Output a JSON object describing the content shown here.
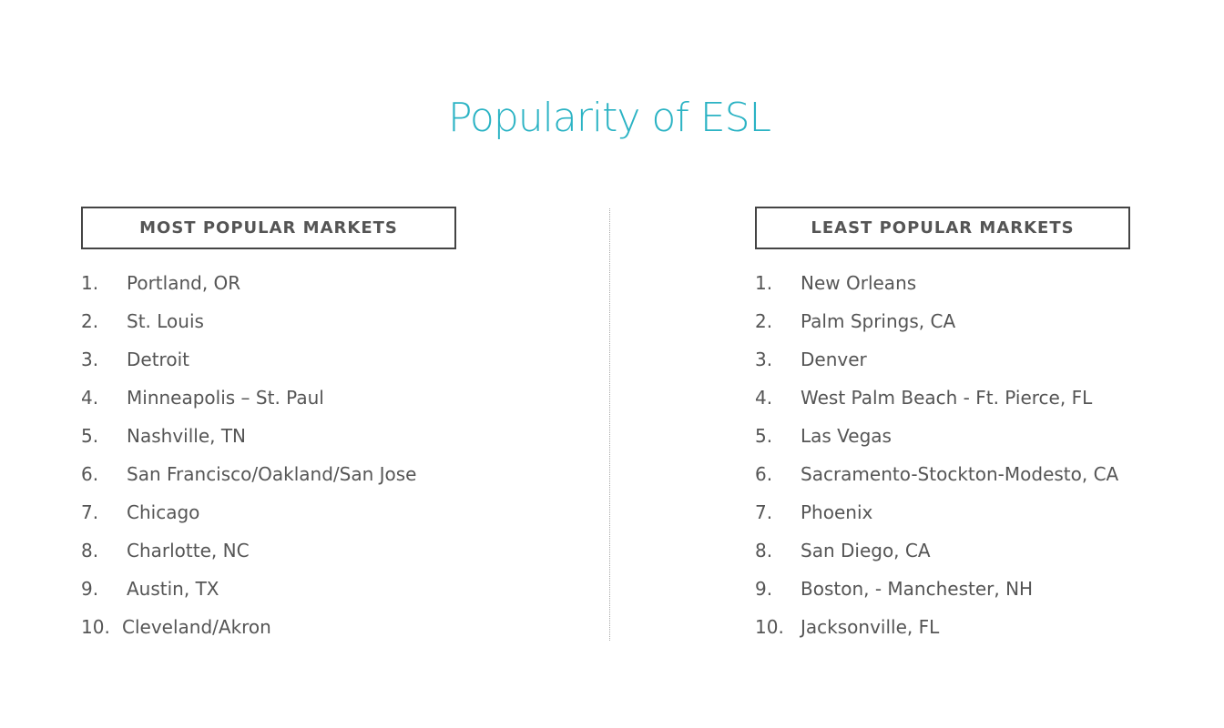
{
  "title": "Popularity of ESL",
  "most_popular": {
    "heading": "MOST POPULAR MARKETS",
    "items": [
      {
        "rank": "1.",
        "name": "Portland, OR"
      },
      {
        "rank": "2.",
        "name": "St. Louis"
      },
      {
        "rank": "3.",
        "name": "Detroit"
      },
      {
        "rank": "4.",
        "name": "Minneapolis – St. Paul"
      },
      {
        "rank": "5.",
        "name": "Nashville, TN"
      },
      {
        "rank": "6.",
        "name": "San Francisco/Oakland/San Jose"
      },
      {
        "rank": "7.",
        "name": "Chicago"
      },
      {
        "rank": "8.",
        "name": "Charlotte, NC"
      },
      {
        "rank": "9.",
        "name": "Austin, TX"
      },
      {
        "rank": "10.",
        "name": "Cleveland/Akron"
      }
    ]
  },
  "least_popular": {
    "heading": "LEAST POPULAR MARKETS",
    "items": [
      {
        "rank": "1.",
        "name": "New Orleans"
      },
      {
        "rank": "2.",
        "name": "Palm Springs, CA"
      },
      {
        "rank": "3.",
        "name": "Denver"
      },
      {
        "rank": "4.",
        "name": "West Palm Beach - Ft. Pierce, FL"
      },
      {
        "rank": "5.",
        "name": "Las Vegas"
      },
      {
        "rank": "6.",
        "name": "Sacramento-Stockton-Modesto, CA"
      },
      {
        "rank": "7.",
        "name": "Phoenix"
      },
      {
        "rank": "8.",
        "name": "San Diego, CA"
      },
      {
        "rank": "9.",
        "name": "Boston, - Manchester, NH"
      },
      {
        "rank": "10.",
        "name": "Jacksonville, FL"
      }
    ]
  },
  "colors": {
    "title": "#2bb3c4",
    "text": "#555555",
    "border": "#444444"
  }
}
